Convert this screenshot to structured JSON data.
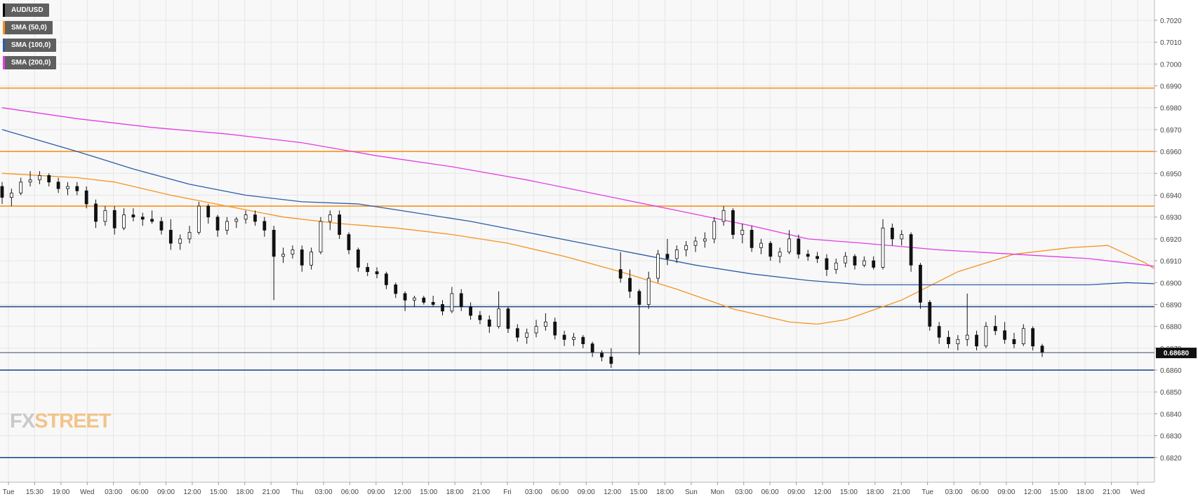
{
  "legend": [
    {
      "label": "AUD/USD",
      "color": "#000000"
    },
    {
      "label": "SMA (50,0)",
      "color": "#f7931e"
    },
    {
      "label": "SMA (100,0)",
      "color": "#2a5caa"
    },
    {
      "label": "SMA (200,0)",
      "color": "#e33ae6"
    }
  ],
  "watermark": {
    "part1": "FX",
    "part2": "STREET"
  },
  "price_tag": "0.68680",
  "chart_data": {
    "type": "candlestick",
    "symbol": "AUD/USD",
    "ylim": [
      0.681,
      0.7028
    ],
    "y_ticks": [
      "0.6820",
      "0.6830",
      "0.6840",
      "0.6850",
      "0.6860",
      "0.6870",
      "0.6880",
      "0.6890",
      "0.6900",
      "0.6910",
      "0.6920",
      "0.6930",
      "0.6940",
      "0.6950",
      "0.6960",
      "0.6970",
      "0.6980",
      "0.6990",
      "0.7000",
      "0.7010",
      "0.7020"
    ],
    "x_ticks": [
      "Tue",
      "15:30",
      "19:00",
      "Wed",
      "03:00",
      "06:00",
      "09:00",
      "12:00",
      "15:00",
      "18:00",
      "21:00",
      "Thu",
      "03:00",
      "06:00",
      "09:00",
      "12:00",
      "15:00",
      "18:00",
      "21:00",
      "Fri",
      "03:00",
      "06:00",
      "09:00",
      "12:00",
      "15:00",
      "18:00",
      "Sun",
      "Mon",
      "03:00",
      "06:00",
      "09:00",
      "12:00",
      "15:00",
      "18:00",
      "21:00",
      "Tue",
      "03:00",
      "06:00",
      "09:00",
      "12:00",
      "15:00",
      "18:00",
      "21:00",
      "Wed"
    ],
    "current_price": 0.6868,
    "horizontal_levels": [
      {
        "value": 0.6989,
        "color": "#f7931e"
      },
      {
        "value": 0.696,
        "color": "#f7931e"
      },
      {
        "value": 0.6935,
        "color": "#f7931e"
      },
      {
        "value": 0.6889,
        "color": "#1f4e8c"
      },
      {
        "value": 0.686,
        "color": "#1f4e8c"
      },
      {
        "value": 0.682,
        "color": "#1f4e8c"
      }
    ],
    "series": [
      {
        "name": "SMA (50,0)",
        "color": "#f7931e",
        "points": [
          [
            0,
            0.695
          ],
          [
            8,
            0.6948
          ],
          [
            12,
            0.6946
          ],
          [
            18,
            0.694
          ],
          [
            24,
            0.6935
          ],
          [
            30,
            0.693
          ],
          [
            36,
            0.6927
          ],
          [
            42,
            0.6925
          ],
          [
            48,
            0.6922
          ],
          [
            54,
            0.6918
          ],
          [
            60,
            0.6912
          ],
          [
            66,
            0.6905
          ],
          [
            72,
            0.6897
          ],
          [
            78,
            0.6888
          ],
          [
            84,
            0.6882
          ],
          [
            87,
            0.6881
          ],
          [
            90,
            0.6883
          ],
          [
            96,
            0.6892
          ],
          [
            102,
            0.6905
          ],
          [
            108,
            0.6913
          ],
          [
            114,
            0.6916
          ],
          [
            118,
            0.6917
          ],
          [
            122,
            0.6909
          ],
          [
            126,
            0.6898
          ]
        ]
      },
      {
        "name": "SMA (100,0)",
        "color": "#2a5caa",
        "points": [
          [
            0,
            0.697
          ],
          [
            8,
            0.696
          ],
          [
            14,
            0.6952
          ],
          [
            20,
            0.6945
          ],
          [
            26,
            0.694
          ],
          [
            32,
            0.6937
          ],
          [
            38,
            0.6936
          ],
          [
            44,
            0.6932
          ],
          [
            50,
            0.6928
          ],
          [
            56,
            0.6923
          ],
          [
            62,
            0.6918
          ],
          [
            68,
            0.6913
          ],
          [
            74,
            0.6908
          ],
          [
            80,
            0.6904
          ],
          [
            86,
            0.6901
          ],
          [
            92,
            0.6899
          ],
          [
            100,
            0.6899
          ],
          [
            108,
            0.6899
          ],
          [
            116,
            0.6899
          ],
          [
            120,
            0.69
          ],
          [
            126,
            0.6899
          ]
        ]
      },
      {
        "name": "SMA (200,0)",
        "color": "#e33ae6",
        "points": [
          [
            0,
            0.698
          ],
          [
            8,
            0.6975
          ],
          [
            16,
            0.6971
          ],
          [
            24,
            0.6968
          ],
          [
            32,
            0.6964
          ],
          [
            40,
            0.6958
          ],
          [
            48,
            0.6953
          ],
          [
            56,
            0.6947
          ],
          [
            64,
            0.694
          ],
          [
            72,
            0.6933
          ],
          [
            80,
            0.6926
          ],
          [
            86,
            0.692
          ],
          [
            92,
            0.6918
          ],
          [
            100,
            0.6915
          ],
          [
            108,
            0.6913
          ],
          [
            116,
            0.6911
          ],
          [
            122,
            0.6908
          ],
          [
            126,
            0.6906
          ]
        ]
      }
    ],
    "candles": [
      [
        0.6944,
        0.6946,
        0.6936,
        0.6939
      ],
      [
        0.6939,
        0.6943,
        0.6935,
        0.6941
      ],
      [
        0.6941,
        0.6948,
        0.694,
        0.6946
      ],
      [
        0.6946,
        0.6951,
        0.6944,
        0.6947
      ],
      [
        0.6947,
        0.6951,
        0.6945,
        0.6949
      ],
      [
        0.6949,
        0.695,
        0.6944,
        0.6946
      ],
      [
        0.6946,
        0.6948,
        0.6941,
        0.6943
      ],
      [
        0.6943,
        0.6946,
        0.694,
        0.6944
      ],
      [
        0.6944,
        0.6946,
        0.694,
        0.6942
      ],
      [
        0.6942,
        0.6944,
        0.6934,
        0.6936
      ],
      [
        0.6936,
        0.6938,
        0.6925,
        0.6928
      ],
      [
        0.6928,
        0.6935,
        0.6926,
        0.6933
      ],
      [
        0.6933,
        0.6935,
        0.6922,
        0.6925
      ],
      [
        0.6925,
        0.6934,
        0.6924,
        0.6931
      ],
      [
        0.6931,
        0.6934,
        0.6928,
        0.693
      ],
      [
        0.693,
        0.6932,
        0.6926,
        0.6929
      ],
      [
        0.6929,
        0.6933,
        0.6927,
        0.6928
      ],
      [
        0.6928,
        0.693,
        0.6922,
        0.6924
      ],
      [
        0.6924,
        0.6929,
        0.6915,
        0.6918
      ],
      [
        0.6918,
        0.6922,
        0.6915,
        0.692
      ],
      [
        0.692,
        0.6926,
        0.6918,
        0.6923
      ],
      [
        0.6923,
        0.6937,
        0.6922,
        0.6935
      ],
      [
        0.6935,
        0.6936,
        0.6927,
        0.693
      ],
      [
        0.693,
        0.6931,
        0.6921,
        0.6924
      ],
      [
        0.6924,
        0.693,
        0.6922,
        0.6928
      ],
      [
        0.6928,
        0.693,
        0.6925,
        0.6929
      ],
      [
        0.6929,
        0.6933,
        0.6927,
        0.6931
      ],
      [
        0.6931,
        0.6933,
        0.6926,
        0.6928
      ],
      [
        0.6928,
        0.693,
        0.6921,
        0.6924
      ],
      [
        0.6924,
        0.6926,
        0.6892,
        0.6912
      ],
      [
        0.6912,
        0.6916,
        0.6909,
        0.6913
      ],
      [
        0.6913,
        0.6917,
        0.6911,
        0.6915
      ],
      [
        0.6915,
        0.6917,
        0.6905,
        0.6908
      ],
      [
        0.6908,
        0.6916,
        0.6906,
        0.6914
      ],
      [
        0.6914,
        0.693,
        0.6913,
        0.6928
      ],
      [
        0.6928,
        0.6933,
        0.6924,
        0.6931
      ],
      [
        0.6931,
        0.6933,
        0.692,
        0.6922
      ],
      [
        0.6922,
        0.6923,
        0.6913,
        0.6915
      ],
      [
        0.6915,
        0.6916,
        0.6905,
        0.6907
      ],
      [
        0.6907,
        0.6909,
        0.6903,
        0.6905
      ],
      [
        0.6905,
        0.6907,
        0.6902,
        0.6904
      ],
      [
        0.6904,
        0.6905,
        0.6897,
        0.6899
      ],
      [
        0.6899,
        0.69,
        0.6893,
        0.6895
      ],
      [
        0.6895,
        0.6896,
        0.6887,
        0.6892
      ],
      [
        0.6892,
        0.6894,
        0.6889,
        0.6893
      ],
      [
        0.6893,
        0.6894,
        0.689,
        0.6891
      ],
      [
        0.6891,
        0.6894,
        0.6889,
        0.689
      ],
      [
        0.689,
        0.6892,
        0.6885,
        0.6887
      ],
      [
        0.6887,
        0.6898,
        0.6886,
        0.6895
      ],
      [
        0.6895,
        0.6897,
        0.6887,
        0.6889
      ],
      [
        0.6889,
        0.6891,
        0.6883,
        0.6885
      ],
      [
        0.6885,
        0.6887,
        0.6881,
        0.6883
      ],
      [
        0.6883,
        0.6885,
        0.6877,
        0.688
      ],
      [
        0.688,
        0.6896,
        0.6879,
        0.6888
      ],
      [
        0.6888,
        0.6889,
        0.6877,
        0.6879
      ],
      [
        0.6879,
        0.6881,
        0.6873,
        0.6875
      ],
      [
        0.6875,
        0.6879,
        0.6872,
        0.6877
      ],
      [
        0.6877,
        0.6883,
        0.6875,
        0.688
      ],
      [
        0.688,
        0.6886,
        0.6878,
        0.6882
      ],
      [
        0.6882,
        0.6884,
        0.6874,
        0.6876
      ],
      [
        0.6876,
        0.6878,
        0.6871,
        0.6874
      ],
      [
        0.6874,
        0.6877,
        0.6871,
        0.6875
      ],
      [
        0.6875,
        0.6876,
        0.687,
        0.6872
      ],
      [
        0.6872,
        0.6873,
        0.6866,
        0.6868
      ],
      [
        0.6868,
        0.6869,
        0.6864,
        0.6866
      ],
      [
        0.6866,
        0.687,
        0.6861,
        0.6863
      ],
      [
        0.6906,
        0.6914,
        0.69,
        0.6902
      ],
      [
        0.6902,
        0.6906,
        0.6893,
        0.6896
      ],
      [
        0.6896,
        0.6897,
        0.6867,
        0.689
      ],
      [
        0.689,
        0.6905,
        0.6888,
        0.6902
      ],
      [
        0.6902,
        0.6915,
        0.69,
        0.6913
      ],
      [
        0.6913,
        0.692,
        0.6908,
        0.6911
      ],
      [
        0.6911,
        0.6917,
        0.6909,
        0.6915
      ],
      [
        0.6915,
        0.6919,
        0.6912,
        0.6917
      ],
      [
        0.6917,
        0.6921,
        0.6914,
        0.6919
      ],
      [
        0.6919,
        0.6923,
        0.6916,
        0.692
      ],
      [
        0.692,
        0.693,
        0.6918,
        0.6928
      ],
      [
        0.6928,
        0.6935,
        0.6926,
        0.6933
      ],
      [
        0.6933,
        0.6934,
        0.692,
        0.6922
      ],
      [
        0.6922,
        0.6927,
        0.6918,
        0.6924
      ],
      [
        0.6924,
        0.6926,
        0.6914,
        0.6916
      ],
      [
        0.6916,
        0.692,
        0.6913,
        0.6918
      ],
      [
        0.6918,
        0.6919,
        0.691,
        0.6912
      ],
      [
        0.6912,
        0.6916,
        0.6909,
        0.6914
      ],
      [
        0.6914,
        0.6924,
        0.6913,
        0.692
      ],
      [
        0.692,
        0.6922,
        0.6911,
        0.6913
      ],
      [
        0.6913,
        0.6915,
        0.691,
        0.6912
      ],
      [
        0.6912,
        0.6914,
        0.6909,
        0.6911
      ],
      [
        0.6911,
        0.6913,
        0.6903,
        0.6906
      ],
      [
        0.6906,
        0.6911,
        0.6904,
        0.6909
      ],
      [
        0.6909,
        0.6914,
        0.6907,
        0.6912
      ],
      [
        0.6912,
        0.6913,
        0.6906,
        0.6908
      ],
      [
        0.6908,
        0.6912,
        0.6907,
        0.691
      ],
      [
        0.691,
        0.6912,
        0.6906,
        0.6907
      ],
      [
        0.6907,
        0.6929,
        0.6906,
        0.6925
      ],
      [
        0.6925,
        0.6927,
        0.6917,
        0.692
      ],
      [
        0.692,
        0.6924,
        0.6917,
        0.6922
      ],
      [
        0.6922,
        0.6923,
        0.6905,
        0.6908
      ],
      [
        0.6908,
        0.6909,
        0.6888,
        0.6891
      ],
      [
        0.6891,
        0.6892,
        0.6878,
        0.688
      ],
      [
        0.688,
        0.6882,
        0.6872,
        0.6875
      ],
      [
        0.6875,
        0.6878,
        0.687,
        0.6872
      ],
      [
        0.6872,
        0.6876,
        0.6869,
        0.6874
      ],
      [
        0.6874,
        0.6895,
        0.6871,
        0.6876
      ],
      [
        0.6876,
        0.6878,
        0.6869,
        0.6871
      ],
      [
        0.6871,
        0.6882,
        0.687,
        0.688
      ],
      [
        0.688,
        0.6885,
        0.6876,
        0.6878
      ],
      [
        0.6878,
        0.6882,
        0.6872,
        0.6874
      ],
      [
        0.6874,
        0.6877,
        0.687,
        0.6872
      ],
      [
        0.6872,
        0.6881,
        0.6871,
        0.6879
      ],
      [
        0.6879,
        0.688,
        0.6869,
        0.6871
      ],
      [
        0.6871,
        0.6872,
        0.6866,
        0.6868
      ]
    ]
  }
}
